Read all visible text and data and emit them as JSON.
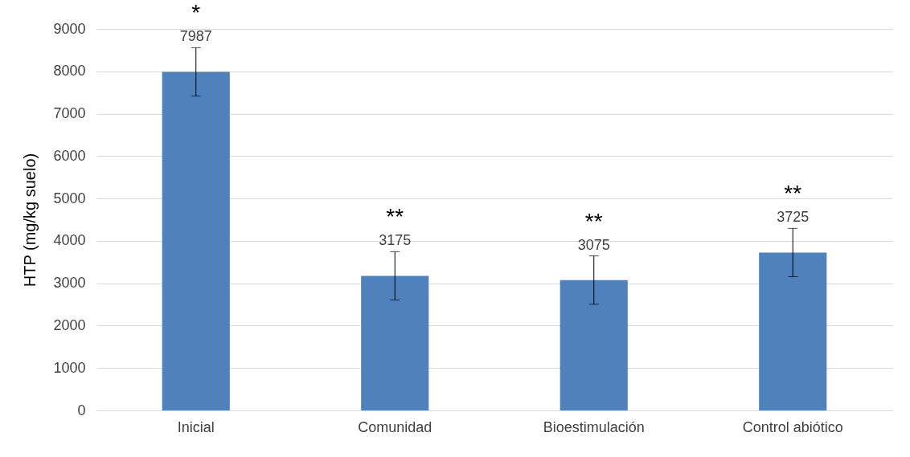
{
  "chart_data": {
    "type": "bar",
    "ylabel": "HTP (mg/kg suelo)",
    "categories": [
      "Inicial",
      "Comunidad",
      "Bioestimulación",
      "Control abiótico"
    ],
    "values": [
      7987,
      3175,
      3075,
      3725
    ],
    "errors": [
      570,
      570,
      570,
      570
    ],
    "color": "#4f81bd",
    "data_labels": true,
    "ylim": [
      0,
      9000
    ],
    "yticks": [
      0,
      1000,
      2000,
      3000,
      4000,
      5000,
      6000,
      7000,
      8000,
      9000
    ],
    "grid": "y",
    "annotations": [
      "*",
      "**",
      "**",
      "**"
    ]
  }
}
